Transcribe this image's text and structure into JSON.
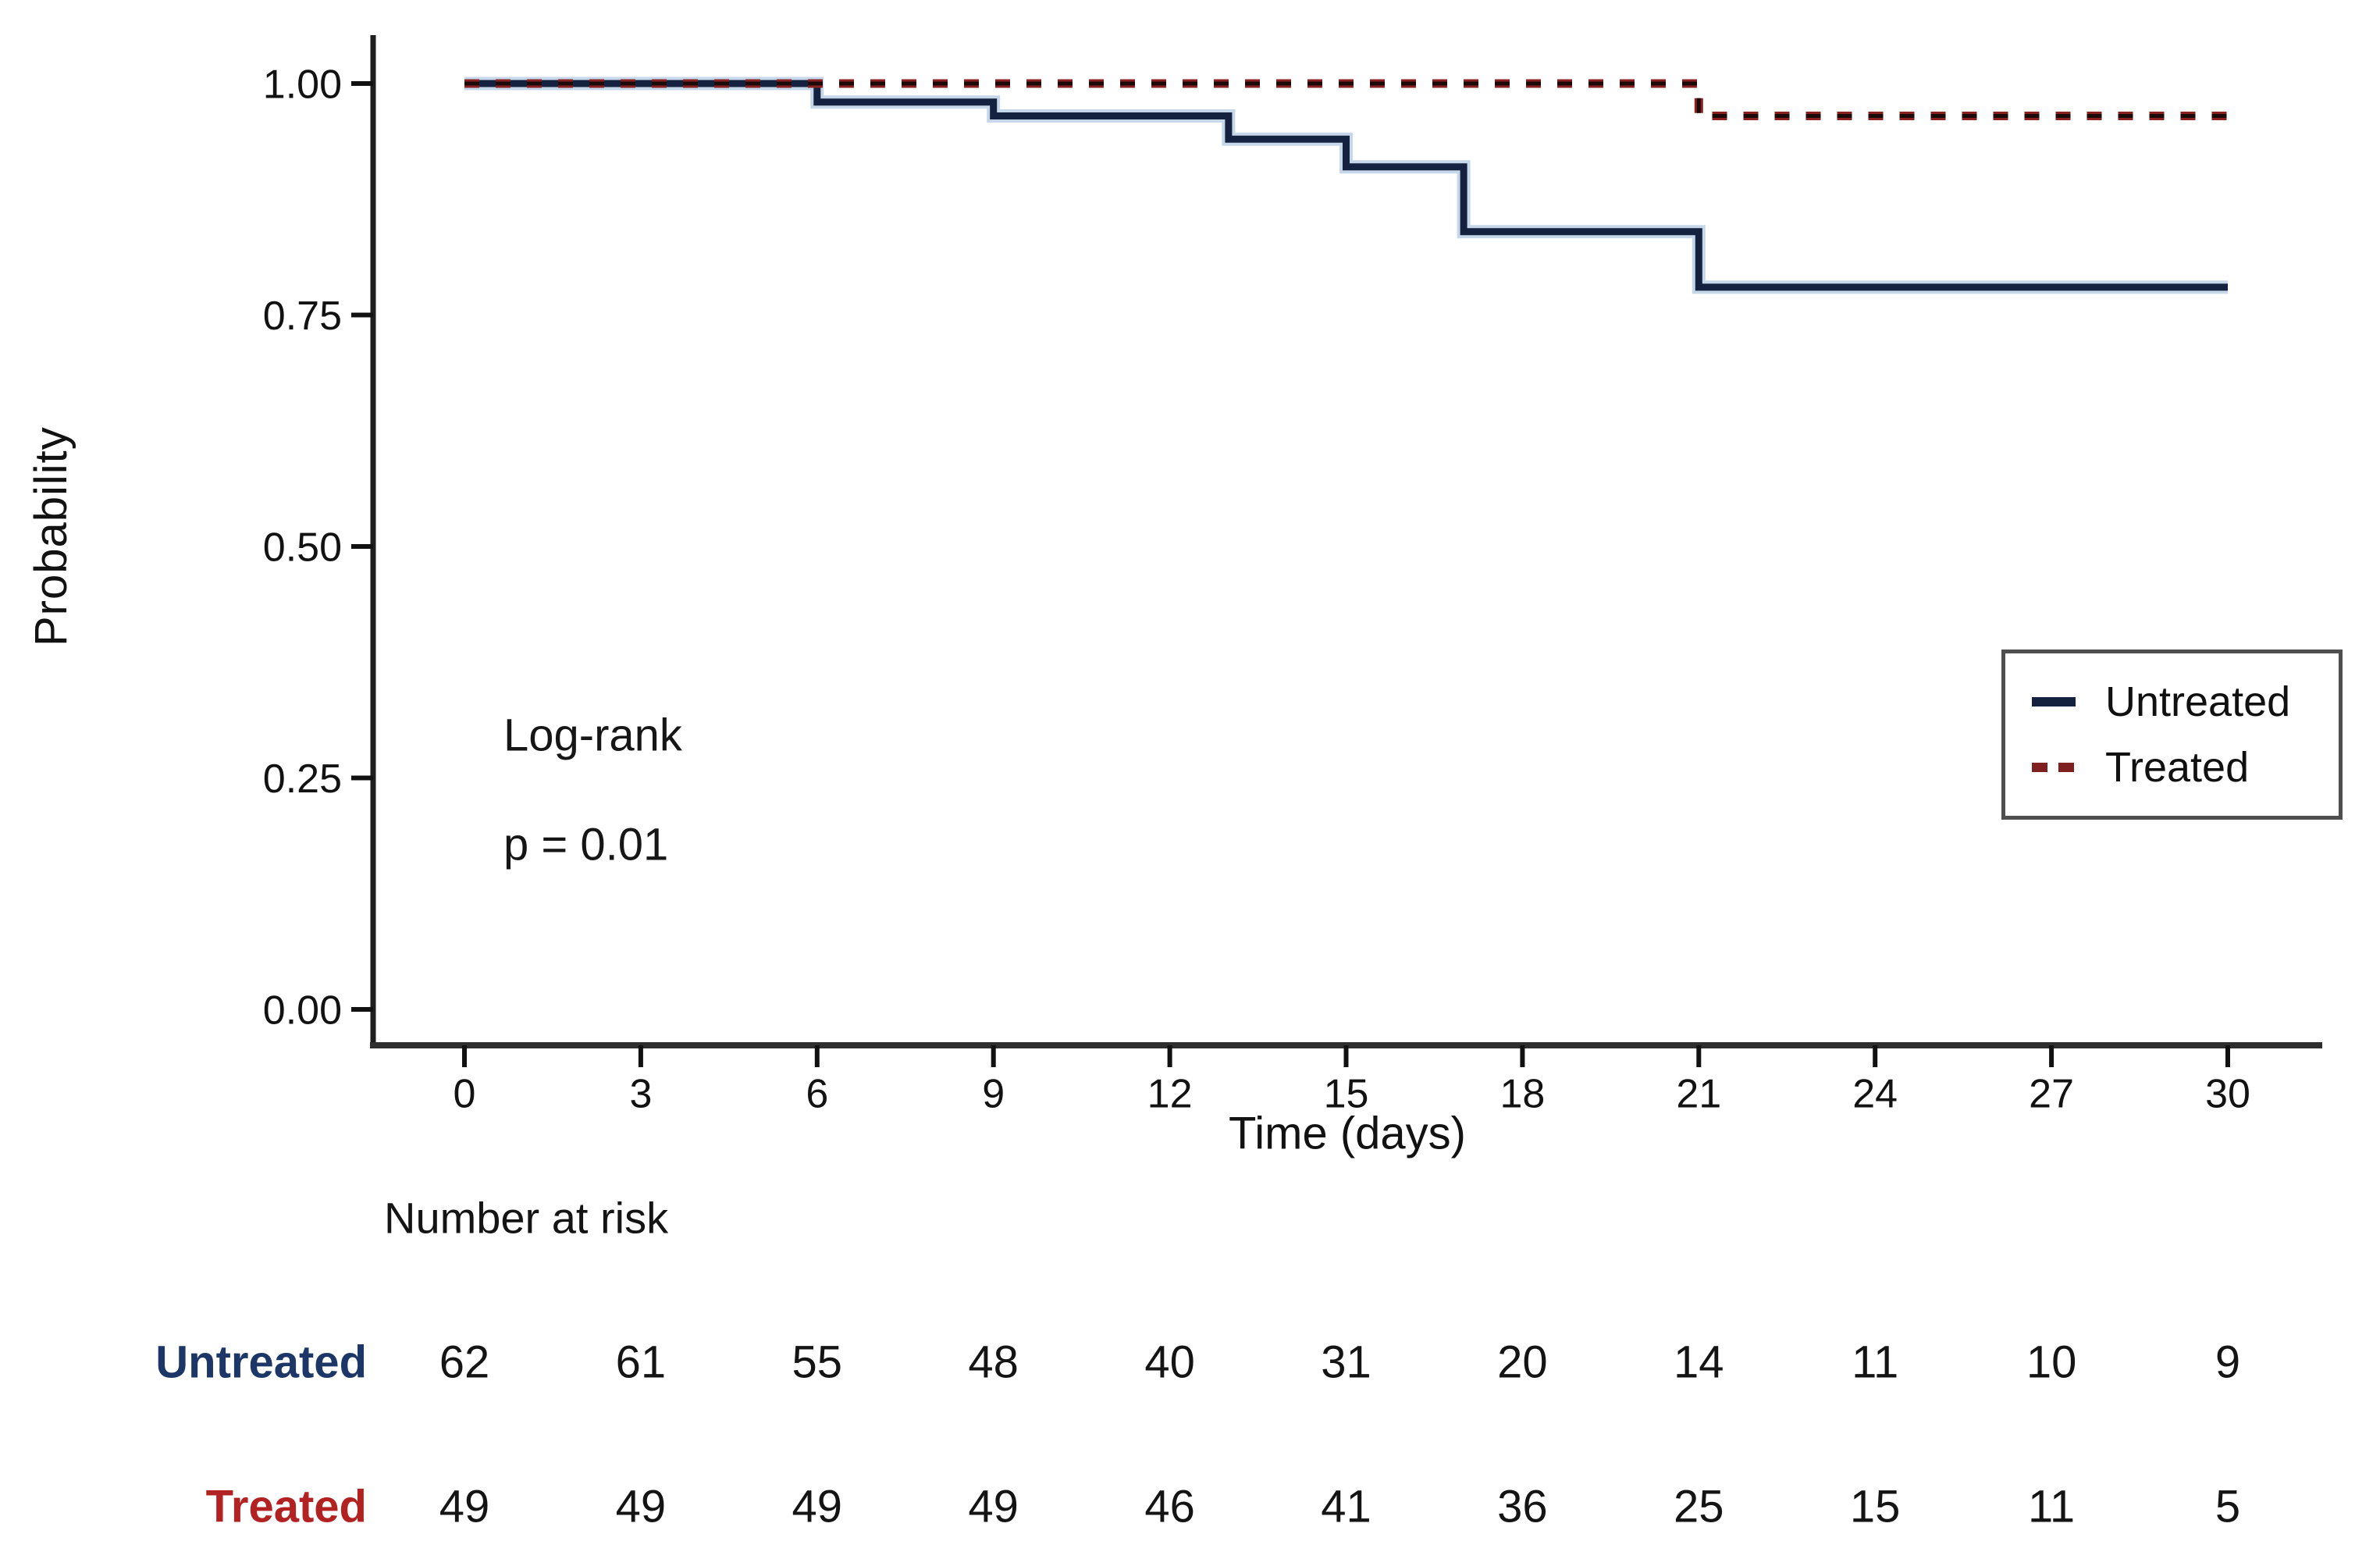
{
  "figure": {
    "background": "#ffffff"
  },
  "chart_data": {
    "type": "line",
    "subtype": "kaplan-meier-step-plot",
    "title": "",
    "xlabel": "Time (days)",
    "ylabel": "Probability",
    "xlim": [
      0,
      30
    ],
    "ylim": [
      0.0,
      1.0
    ],
    "grid": false,
    "x_ticks": [
      "0",
      "3",
      "6",
      "9",
      "12",
      "15",
      "18",
      "21",
      "24",
      "27",
      "30"
    ],
    "x_tick_values": [
      0,
      3,
      6,
      9,
      12,
      15,
      18,
      21,
      24,
      27,
      30
    ],
    "y_ticks": [
      "1.00",
      "0.75",
      "0.50",
      "0.25",
      "0.00"
    ],
    "y_tick_values": [
      1.0,
      0.75,
      0.5,
      0.25,
      0.0
    ],
    "series": [
      {
        "name": "Untreated",
        "style": "solid",
        "color": "#14213f",
        "halo_color": "#bcd0e5",
        "points": [
          [
            0,
            1.0
          ],
          [
            6,
            1.0
          ],
          [
            6,
            0.98
          ],
          [
            9,
            0.98
          ],
          [
            9,
            0.965
          ],
          [
            13,
            0.965
          ],
          [
            13,
            0.94
          ],
          [
            15,
            0.94
          ],
          [
            15,
            0.91
          ],
          [
            17,
            0.91
          ],
          [
            17,
            0.84
          ],
          [
            21,
            0.84
          ],
          [
            21,
            0.78
          ],
          [
            30,
            0.78
          ]
        ]
      },
      {
        "name": "Treated",
        "style": "dashed",
        "color": "#8b2222",
        "core_color": "#1c0909",
        "points": [
          [
            0,
            1.0
          ],
          [
            21,
            1.0
          ],
          [
            21,
            0.965
          ],
          [
            30,
            0.965
          ]
        ]
      }
    ],
    "annotations": [
      {
        "text": "Log-rank"
      },
      {
        "text": "p = 0.01"
      }
    ],
    "legend": {
      "position": "right-middle",
      "entries": [
        "Untreated",
        "Treated"
      ]
    },
    "number_at_risk": {
      "header": "Number at risk",
      "time_points": [
        0,
        3,
        6,
        9,
        12,
        15,
        18,
        21,
        24,
        27,
        30
      ],
      "rows": [
        {
          "label": "Untreated",
          "color": "#1c3667",
          "counts": [
            62,
            61,
            55,
            48,
            40,
            31,
            20,
            14,
            11,
            10,
            9
          ]
        },
        {
          "label": "Treated",
          "color": "#b22222",
          "counts": [
            49,
            49,
            49,
            49,
            46,
            41,
            36,
            25,
            15,
            11,
            5
          ]
        }
      ]
    }
  }
}
